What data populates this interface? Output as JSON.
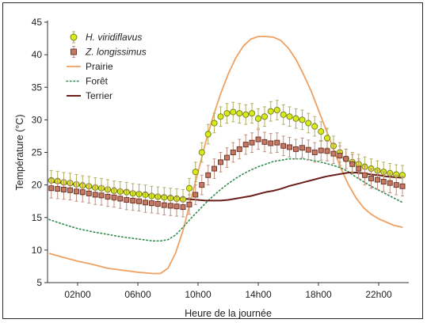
{
  "chart_data": {
    "type": "line",
    "xlabel": "Heure de la journée",
    "ylabel": "Température (°C)",
    "xlim": [
      0,
      24
    ],
    "ylim": [
      5,
      45
    ],
    "grid": false,
    "legend_position": "top-left",
    "x_ticks": [
      {
        "value": 2,
        "label": "02h00"
      },
      {
        "value": 6,
        "label": "06h00"
      },
      {
        "value": 10,
        "label": "10h00"
      },
      {
        "value": 14,
        "label": "14h00"
      },
      {
        "value": 18,
        "label": "18h00"
      },
      {
        "value": 22,
        "label": "22h00"
      }
    ],
    "y_ticks": [
      5,
      10,
      15,
      20,
      25,
      30,
      35,
      40,
      45
    ],
    "series": [
      {
        "name": "H. viridiflavus",
        "style": "circle-markers",
        "color": "#d8ea1e",
        "error_color": "#b0b060",
        "x": [
          0.25,
          0.67,
          1.08,
          1.5,
          1.92,
          2.33,
          2.75,
          3.17,
          3.58,
          4.0,
          4.42,
          4.83,
          5.25,
          5.67,
          6.08,
          6.5,
          6.92,
          7.33,
          7.75,
          8.17,
          8.58,
          9.0,
          9.42,
          9.83,
          10.25,
          10.67,
          11.08,
          11.5,
          11.92,
          12.33,
          12.75,
          13.17,
          13.58,
          14.0,
          14.42,
          14.83,
          15.25,
          15.67,
          16.08,
          16.5,
          16.92,
          17.33,
          17.75,
          18.17,
          18.58,
          19.0,
          19.42,
          19.83,
          20.25,
          20.67,
          21.08,
          21.5,
          21.92,
          22.33,
          22.75,
          23.17,
          23.58
        ],
        "y": [
          20.7,
          20.6,
          20.4,
          20.3,
          20.1,
          19.9,
          19.8,
          19.6,
          19.5,
          19.3,
          19.1,
          19.0,
          18.9,
          18.7,
          18.6,
          18.5,
          18.3,
          18.2,
          18.1,
          18.0,
          17.9,
          17.8,
          19.5,
          22.0,
          25.0,
          27.8,
          29.5,
          30.5,
          31.0,
          31.2,
          31.0,
          30.8,
          31.0,
          30.2,
          30.5,
          31.3,
          31.5,
          30.8,
          30.5,
          30.2,
          30.0,
          29.5,
          29.0,
          28.2,
          27.2,
          26.0,
          25.0,
          24.0,
          23.5,
          23.2,
          22.8,
          22.5,
          22.2,
          22.0,
          21.8,
          21.6,
          21.5
        ],
        "error": 1.5
      },
      {
        "name": "Z. longissimus",
        "style": "square-markers",
        "color": "#c47a62",
        "error_color": "#c09080",
        "x": [
          0.25,
          0.67,
          1.08,
          1.5,
          1.92,
          2.33,
          2.75,
          3.17,
          3.58,
          4.0,
          4.42,
          4.83,
          5.25,
          5.67,
          6.08,
          6.5,
          6.92,
          7.33,
          7.75,
          8.17,
          8.58,
          9.0,
          9.42,
          9.83,
          10.25,
          10.67,
          11.08,
          11.5,
          11.92,
          12.33,
          12.75,
          13.17,
          13.58,
          14.0,
          14.42,
          14.83,
          15.25,
          15.67,
          16.08,
          16.5,
          16.92,
          17.33,
          17.75,
          18.17,
          18.58,
          19.0,
          19.42,
          19.83,
          20.25,
          20.67,
          21.08,
          21.5,
          21.92,
          22.33,
          22.75,
          23.17,
          23.58
        ],
        "y": [
          19.5,
          19.4,
          19.3,
          19.2,
          19.0,
          18.9,
          18.7,
          18.5,
          18.4,
          18.2,
          18.1,
          17.9,
          17.7,
          17.6,
          17.5,
          17.3,
          17.2,
          17.1,
          16.9,
          16.8,
          16.7,
          16.6,
          17.0,
          18.5,
          20.0,
          21.5,
          22.5,
          23.5,
          24.2,
          25.0,
          25.5,
          26.2,
          26.5,
          27.0,
          26.6,
          26.4,
          26.5,
          26.0,
          25.8,
          25.5,
          25.7,
          25.4,
          25.0,
          25.3,
          25.2,
          24.8,
          24.5,
          24.0,
          23.2,
          22.5,
          21.5,
          21.0,
          20.8,
          20.5,
          20.3,
          20.0,
          19.8
        ],
        "error": 1.5
      },
      {
        "name": "Prairie",
        "style": "solid-line",
        "color": "#f0a060",
        "x": [
          0.1,
          1,
          2,
          3,
          4,
          5,
          6,
          7,
          7.5,
          8,
          8.5,
          9,
          9.5,
          10,
          10.5,
          11,
          11.5,
          12,
          12.5,
          13,
          13.5,
          14,
          14.5,
          15,
          15.5,
          16,
          16.5,
          17,
          17.5,
          18,
          18.5,
          19,
          19.5,
          20,
          20.5,
          21,
          21.5,
          22,
          22.5,
          23,
          23.6
        ],
        "y": [
          9.5,
          8.9,
          8.3,
          7.8,
          7.2,
          6.9,
          6.6,
          6.4,
          6.4,
          7.2,
          9.5,
          13.0,
          17.5,
          22.0,
          26.5,
          30.5,
          34.0,
          37.0,
          39.5,
          41.3,
          42.4,
          42.8,
          42.8,
          42.7,
          42.2,
          41.0,
          39.3,
          37.0,
          34.5,
          31.5,
          28.5,
          25.5,
          22.5,
          20.0,
          18.0,
          16.5,
          15.5,
          14.8,
          14.3,
          13.8,
          13.5
        ]
      },
      {
        "name": "Forêt",
        "style": "dotted-line",
        "color": "#2e8b4a",
        "x": [
          0.1,
          1,
          2,
          3,
          4,
          5,
          6,
          7,
          7.5,
          8,
          8.5,
          9,
          9.5,
          10,
          10.5,
          11,
          11.5,
          12,
          12.5,
          13,
          13.5,
          14,
          14.5,
          15,
          15.5,
          16,
          16.5,
          17,
          17.5,
          18,
          18.5,
          19,
          19.5,
          20,
          20.5,
          21,
          21.5,
          22,
          22.5,
          23,
          23.6
        ],
        "y": [
          14.7,
          14.0,
          13.3,
          12.8,
          12.4,
          12.0,
          11.7,
          11.4,
          11.4,
          11.6,
          12.3,
          13.5,
          14.8,
          16.0,
          17.2,
          18.3,
          19.3,
          20.2,
          21.0,
          21.7,
          22.3,
          22.8,
          23.2,
          23.6,
          23.8,
          24.0,
          24.0,
          24.0,
          23.8,
          23.6,
          23.3,
          23.0,
          22.6,
          22.0,
          21.2,
          20.5,
          19.8,
          19.2,
          18.6,
          18.0,
          17.3
        ]
      },
      {
        "name": "Terrier",
        "style": "solid-line",
        "color": "#6a1f1a",
        "x": [
          0.1,
          1,
          2,
          3,
          4,
          5,
          6,
          7,
          8,
          8.5,
          9,
          9.5,
          10,
          10.5,
          11,
          11.5,
          12,
          12.5,
          13,
          13.5,
          14,
          14.5,
          15,
          15.5,
          16,
          16.5,
          17,
          17.5,
          18,
          18.5,
          19,
          19.5,
          20,
          20.5,
          21,
          21.5,
          22,
          22.5,
          23,
          23.6
        ],
        "y": [
          20.5,
          20.3,
          20.0,
          19.6,
          19.3,
          19.0,
          18.7,
          18.4,
          18.1,
          18.0,
          17.9,
          17.8,
          17.7,
          17.6,
          17.6,
          17.6,
          17.7,
          17.9,
          18.1,
          18.3,
          18.6,
          18.9,
          19.1,
          19.4,
          19.8,
          20.1,
          20.4,
          20.7,
          21.0,
          21.3,
          21.5,
          21.7,
          21.9,
          21.9,
          21.8,
          21.6,
          21.5,
          21.3,
          21.2,
          21.1
        ]
      }
    ]
  }
}
